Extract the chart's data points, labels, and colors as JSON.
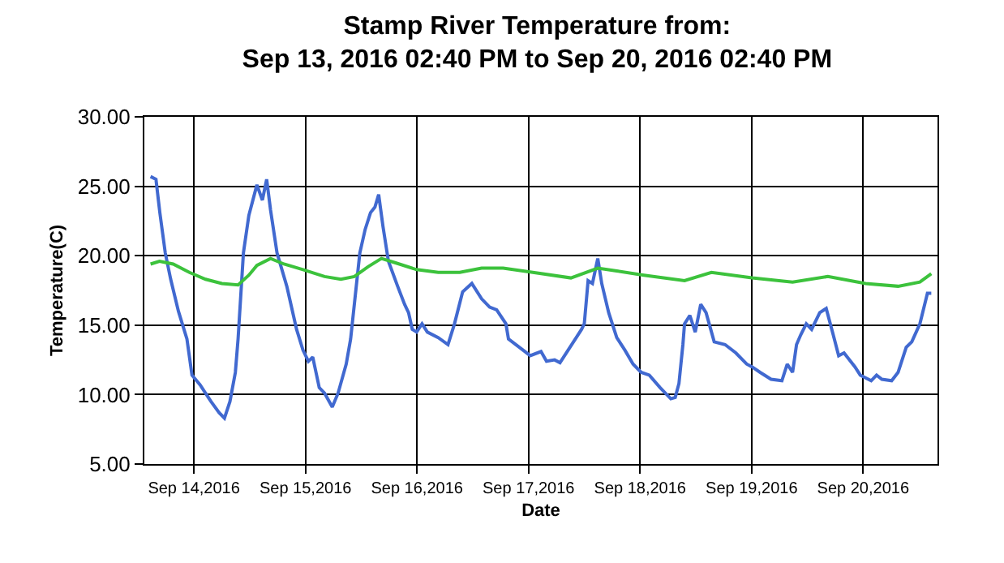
{
  "chart_data": {
    "type": "line",
    "title": "Stamp River Temperature from:\nSep 13, 2016 02:40 PM to Sep 20, 2016 02:40 PM",
    "xlabel": "Date",
    "ylabel": "Temperature(C)",
    "xlim": [
      "2016-09-13T13:20",
      "2016-09-20T16:00"
    ],
    "xticks": [
      {
        "value": "2016-09-14",
        "label": "Sep 14,2016"
      },
      {
        "value": "2016-09-15",
        "label": "Sep 15,2016"
      },
      {
        "value": "2016-09-16",
        "label": "Sep 16,2016"
      },
      {
        "value": "2016-09-17",
        "label": "Sep 17,2016"
      },
      {
        "value": "2016-09-18",
        "label": "Sep 18,2016"
      },
      {
        "value": "2016-09-19",
        "label": "Sep 19,2016"
      },
      {
        "value": "2016-09-20",
        "label": "Sep 20,2016"
      }
    ],
    "ylim": [
      5,
      30
    ],
    "yticks": [
      {
        "value": 5,
        "label": "5.00"
      },
      {
        "value": 10,
        "label": "10.00"
      },
      {
        "value": 15,
        "label": "15.00"
      },
      {
        "value": 20,
        "label": "20.00"
      },
      {
        "value": 25,
        "label": "25.00"
      },
      {
        "value": 30,
        "label": "30.00"
      }
    ],
    "grid": true,
    "marker": "none",
    "line_style": "solid",
    "series": [
      {
        "color": "#4169d0",
        "x": [
          "2016-09-13T14:40",
          "2016-09-13T15:50",
          "2016-09-13T16:40",
          "2016-09-13T17:50",
          "2016-09-13T19:00",
          "2016-09-13T20:40",
          "2016-09-13T22:30",
          "2016-09-13T23:35",
          "2016-09-14T01:20",
          "2016-09-14T03:40",
          "2016-09-14T05:25",
          "2016-09-14T06:34",
          "2016-09-14T07:45",
          "2016-09-14T08:55",
          "2016-09-14T09:30",
          "2016-09-14T10:39",
          "2016-09-14T11:49",
          "2016-09-14T13:33",
          "2016-09-14T14:44",
          "2016-09-14T15:39",
          "2016-09-14T16:29",
          "2016-09-14T17:53",
          "2016-09-14T19:59",
          "2016-09-14T22:05",
          "2016-09-14T23:28",
          "2016-09-15T00:38",
          "2016-09-15T01:34",
          "2016-09-15T02:58",
          "2016-09-15T04:07",
          "2016-09-15T05:46",
          "2016-09-15T07:01",
          "2016-09-15T08:46",
          "2016-09-15T09:43",
          "2016-09-15T11:42",
          "2016-09-15T12:51",
          "2016-09-15T14:00",
          "2016-09-15T14:57",
          "2016-09-15T15:45",
          "2016-09-15T16:41",
          "2016-09-15T17:51",
          "2016-09-15T19:50",
          "2016-09-15T21:20",
          "2016-09-15T22:11",
          "2016-09-15T22:59",
          "2016-09-15T23:55",
          "2016-09-16T01:05",
          "2016-09-16T02:14",
          "2016-09-16T04:34",
          "2016-09-16T06:40",
          "2016-09-16T08:04",
          "2016-09-16T09:49",
          "2016-09-16T11:48",
          "2016-09-16T13:54",
          "2016-09-16T15:38",
          "2016-09-16T17:08",
          "2016-09-16T19:08",
          "2016-09-16T19:41",
          "2016-09-16T22:02",
          "2016-09-17T00:22",
          "2016-09-17T02:41",
          "2016-09-17T03:52",
          "2016-09-17T05:37",
          "2016-09-17T06:46",
          "2016-09-17T08:31",
          "2016-09-17T10:16",
          "2016-09-17T11:25",
          "2016-09-17T12:00",
          "2016-09-17T12:49",
          "2016-09-17T13:45",
          "2016-09-17T14:54",
          "2016-09-17T15:45",
          "2016-09-17T17:15",
          "2016-09-17T18:59",
          "2016-09-17T20:44",
          "2016-09-17T22:29",
          "2016-09-18T00:14",
          "2016-09-18T01:59",
          "2016-09-18T04:19",
          "2016-09-18T06:37",
          "2016-09-18T07:34",
          "2016-09-18T08:22",
          "2016-09-18T09:13",
          "2016-09-18T09:34",
          "2016-09-18T10:43",
          "2016-09-18T11:52",
          "2016-09-18T13:03",
          "2016-09-18T14:12",
          "2016-09-18T15:57",
          "2016-09-18T18:17",
          "2016-09-18T20:36",
          "2016-09-18T22:56",
          "2016-09-19T00:05",
          "2016-09-19T01:50",
          "2016-09-19T04:11",
          "2016-09-19T06:31",
          "2016-09-19T07:40",
          "2016-09-19T08:49",
          "2016-09-19T09:40",
          "2016-09-19T10:34",
          "2016-09-19T11:46",
          "2016-09-19T12:55",
          "2016-09-19T14:40",
          "2016-09-19T16:03",
          "2016-09-19T17:34",
          "2016-09-19T18:44",
          "2016-09-19T19:53",
          "2016-09-19T22:14",
          "2016-09-19T23:23",
          "2016-09-20T01:44",
          "2016-09-20T02:53",
          "2016-09-20T04:02",
          "2016-09-20T06:08",
          "2016-09-20T07:31",
          "2016-09-20T09:16",
          "2016-09-20T10:28",
          "2016-09-20T12:13",
          "2016-09-20T13:50",
          "2016-09-20T14:40"
        ],
        "values": [
          25.7,
          25.5,
          23.1,
          20.2,
          18.3,
          16.0,
          14.0,
          11.4,
          10.7,
          9.5,
          8.7,
          8.3,
          9.5,
          11.6,
          14.0,
          20.2,
          22.9,
          25.1,
          24.0,
          25.5,
          23.3,
          20.2,
          17.8,
          14.7,
          13.2,
          12.4,
          12.7,
          10.5,
          10.1,
          9.1,
          10.1,
          12.2,
          14.0,
          20.2,
          21.9,
          23.1,
          23.5,
          24.4,
          22.1,
          19.6,
          17.8,
          16.5,
          15.9,
          14.7,
          14.5,
          15.1,
          14.5,
          14.1,
          13.6,
          15.1,
          17.4,
          18.0,
          16.9,
          16.3,
          16.1,
          15.1,
          14.0,
          13.4,
          12.8,
          13.1,
          12.4,
          12.5,
          12.3,
          13.2,
          14.1,
          14.7,
          15.1,
          18.2,
          18.0,
          19.8,
          18.0,
          15.9,
          14.1,
          13.2,
          12.2,
          11.6,
          11.4,
          10.5,
          9.7,
          9.8,
          10.8,
          13.6,
          15.1,
          15.7,
          14.5,
          16.5,
          15.9,
          13.8,
          13.6,
          13.0,
          12.2,
          12.0,
          11.6,
          11.1,
          11.0,
          12.2,
          11.6,
          13.6,
          14.3,
          15.1,
          14.7,
          15.9,
          16.2,
          14.3,
          12.8,
          13.0,
          12.0,
          11.4,
          11.0,
          11.4,
          11.1,
          11.0,
          11.6,
          13.4,
          13.8,
          15.1,
          17.3,
          17.3
        ]
      },
      {
        "color": "#3cc23c",
        "x": [
          "2016-09-13T14:40",
          "2016-09-13T16:35",
          "2016-09-13T19:32",
          "2016-09-13T23:01",
          "2016-09-14T02:31",
          "2016-09-14T06:01",
          "2016-09-14T09:30",
          "2016-09-14T11:49",
          "2016-09-14T13:33",
          "2016-09-14T16:29",
          "2016-09-14T19:23",
          "2016-09-14T23:28",
          "2016-09-15T04:07",
          "2016-09-15T07:37",
          "2016-09-15T10:31",
          "2016-09-15T13:27",
          "2016-09-15T16:21",
          "2016-09-15T19:15",
          "2016-09-15T23:55",
          "2016-09-16T04:34",
          "2016-09-16T09:13",
          "2016-09-16T13:54",
          "2016-09-16T18:32",
          "2016-09-17T00:56",
          "2016-09-17T09:07",
          "2016-09-17T14:54",
          "2016-09-17T18:59",
          "2016-09-18T00:50",
          "2016-09-18T09:34",
          "2016-09-18T15:21",
          "2016-09-19T00:05",
          "2016-09-19T08:49",
          "2016-09-19T16:24",
          "2016-09-20T00:32",
          "2016-09-20T07:31",
          "2016-09-20T12:13",
          "2016-09-20T14:40"
        ],
        "values": [
          19.4,
          19.6,
          19.4,
          18.8,
          18.3,
          18.0,
          17.9,
          18.6,
          19.3,
          19.8,
          19.4,
          19.0,
          18.5,
          18.3,
          18.5,
          19.2,
          19.8,
          19.5,
          19.0,
          18.8,
          18.8,
          19.1,
          19.1,
          18.8,
          18.4,
          19.1,
          18.9,
          18.6,
          18.2,
          18.8,
          18.4,
          18.1,
          18.5,
          18.0,
          17.8,
          18.1,
          18.7
        ]
      }
    ]
  }
}
